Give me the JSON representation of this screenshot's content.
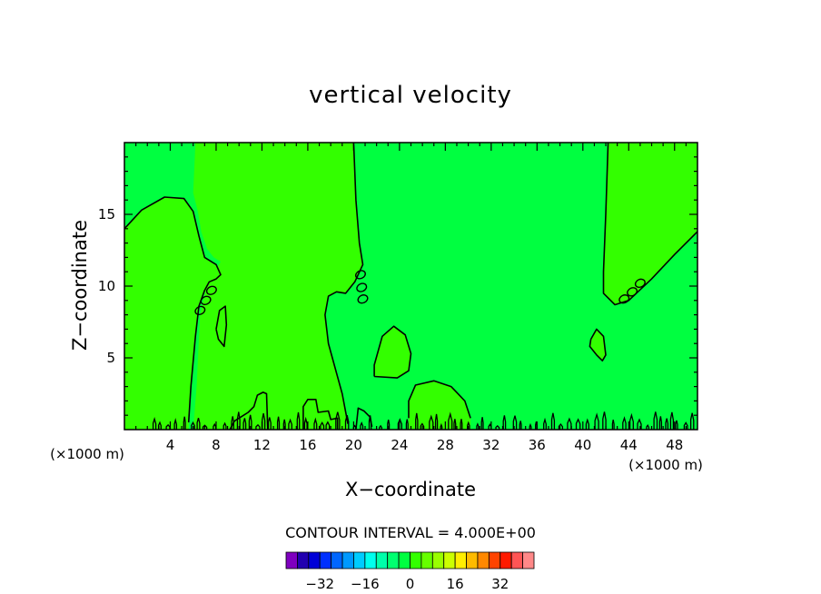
{
  "chart_data": {
    "type": "contour",
    "title": "vertical velocity",
    "xlabel": "X−coordinate",
    "ylabel": "Z−coordinate",
    "x_unit_left": "(×1000 m)",
    "x_unit_right": "(×1000 m)",
    "xlim": [
      0,
      50
    ],
    "ylim": [
      0,
      20
    ],
    "x_ticks": [
      4,
      8,
      12,
      16,
      20,
      24,
      28,
      32,
      36,
      40,
      44,
      48
    ],
    "y_ticks": [
      5,
      10,
      15
    ],
    "contour_interval_text": "CONTOUR INTERVAL = 4.000E+00",
    "background_color": "#00ff40",
    "regions": [
      {
        "color": "#33ff00",
        "polygon": [
          [
            0,
            14
          ],
          [
            1.5,
            15.3
          ],
          [
            3.5,
            16.2
          ],
          [
            5.2,
            16.1
          ],
          [
            6,
            15.2
          ],
          [
            6.5,
            13.5
          ],
          [
            7,
            12
          ],
          [
            8,
            11.5
          ],
          [
            8.4,
            10.8
          ],
          [
            8,
            10.5
          ],
          [
            7.4,
            10.3
          ],
          [
            6.5,
            8.6
          ],
          [
            6.2,
            6.5
          ],
          [
            5.8,
            3
          ],
          [
            5.6,
            0
          ],
          [
            0,
            0
          ]
        ]
      },
      {
        "color": "#33ff00",
        "polygon": [
          [
            6,
            0
          ],
          [
            6.3,
            3
          ],
          [
            6.6,
            8
          ],
          [
            7.3,
            10.5
          ],
          [
            8,
            11.2
          ],
          [
            8.4,
            11.7
          ],
          [
            7.8,
            12
          ],
          [
            7.2,
            12.6
          ],
          [
            6.7,
            13.8
          ],
          [
            6.4,
            15.2
          ],
          [
            6,
            16.5
          ],
          [
            6.2,
            20
          ],
          [
            20,
            20
          ],
          [
            20.2,
            16
          ],
          [
            20.5,
            13
          ],
          [
            20.8,
            11.5
          ],
          [
            20.1,
            10.3
          ],
          [
            19.3,
            9.5
          ],
          [
            18.5,
            9.6
          ],
          [
            17.8,
            9.3
          ],
          [
            17.5,
            8
          ],
          [
            17.8,
            6
          ],
          [
            19,
            2.5
          ],
          [
            19.5,
            0
          ]
        ]
      },
      {
        "color": "#33ff00",
        "polygon": [
          [
            42.2,
            20
          ],
          [
            42,
            15
          ],
          [
            41.8,
            11
          ],
          [
            41.8,
            9.5
          ],
          [
            42.8,
            8.7
          ],
          [
            44,
            9
          ],
          [
            46,
            10.5
          ],
          [
            48,
            12.2
          ],
          [
            50,
            13.8
          ],
          [
            50,
            20
          ]
        ]
      },
      {
        "color": "#33ff00",
        "polygon": [
          [
            21.8,
            3.7
          ],
          [
            21.8,
            4.5
          ],
          [
            22.5,
            6.5
          ],
          [
            23.5,
            7.2
          ],
          [
            24.5,
            6.6
          ],
          [
            25,
            5.3
          ],
          [
            24.8,
            4.1
          ],
          [
            23.8,
            3.6
          ]
        ]
      },
      {
        "color": "#33ff00",
        "polygon": [
          [
            24.8,
            0
          ],
          [
            24.8,
            2
          ],
          [
            25.4,
            3.1
          ],
          [
            27,
            3.4
          ],
          [
            28.5,
            3
          ],
          [
            29.7,
            2
          ],
          [
            30.2,
            0.8
          ],
          [
            30.2,
            0
          ]
        ]
      },
      {
        "color": "#33ff00",
        "polygon": [
          [
            8,
            7
          ],
          [
            8.3,
            8.3
          ],
          [
            8.8,
            8.6
          ],
          [
            8.9,
            7.3
          ],
          [
            8.7,
            5.8
          ],
          [
            8.2,
            6.3
          ]
        ]
      },
      {
        "color": "#33ff00",
        "polygon": [
          [
            40.7,
            6.3
          ],
          [
            41.2,
            7
          ],
          [
            41.8,
            6.5
          ],
          [
            42,
            5.2
          ],
          [
            41.7,
            4.8
          ],
          [
            41.2,
            5.2
          ],
          [
            40.6,
            5.8
          ]
        ]
      }
    ],
    "contours": [
      [
        [
          0,
          14
        ],
        [
          1.5,
          15.3
        ],
        [
          3.5,
          16.2
        ],
        [
          5.2,
          16.1
        ],
        [
          6,
          15.2
        ],
        [
          6.5,
          13.5
        ],
        [
          7,
          12
        ],
        [
          8,
          11.5
        ],
        [
          8.4,
          10.8
        ],
        [
          8,
          10.5
        ],
        [
          7.4,
          10.3
        ],
        [
          7,
          9.7
        ],
        [
          6.5,
          8.6
        ],
        [
          6.2,
          6.5
        ],
        [
          5.8,
          3
        ],
        [
          5.6,
          0.5
        ]
      ],
      [
        [
          20,
          20
        ],
        [
          20.2,
          16
        ],
        [
          20.5,
          13
        ],
        [
          20.8,
          11.5
        ],
        [
          20.1,
          10.3
        ],
        [
          19.3,
          9.5
        ],
        [
          18.5,
          9.6
        ],
        [
          17.8,
          9.3
        ],
        [
          17.5,
          8
        ],
        [
          17.8,
          6
        ],
        [
          19,
          2.5
        ],
        [
          19.5,
          0.4
        ]
      ],
      [
        [
          42.2,
          20
        ],
        [
          42,
          15
        ],
        [
          41.8,
          11
        ],
        [
          41.8,
          9.5
        ],
        [
          42.8,
          8.7
        ],
        [
          44,
          9
        ],
        [
          46,
          10.5
        ],
        [
          48,
          12.2
        ],
        [
          50,
          13.8
        ]
      ],
      [
        [
          21.8,
          3.7
        ],
        [
          21.8,
          4.5
        ],
        [
          22.5,
          6.5
        ],
        [
          23.5,
          7.2
        ],
        [
          24.5,
          6.6
        ],
        [
          25,
          5.3
        ],
        [
          24.8,
          4.1
        ],
        [
          23.8,
          3.6
        ],
        [
          21.8,
          3.7
        ]
      ],
      [
        [
          24.8,
          0.8
        ],
        [
          24.8,
          2
        ],
        [
          25.4,
          3.1
        ],
        [
          27,
          3.4
        ],
        [
          28.5,
          3
        ],
        [
          29.7,
          2
        ],
        [
          30.2,
          0.8
        ]
      ],
      [
        [
          8,
          7
        ],
        [
          8.3,
          8.3
        ],
        [
          8.8,
          8.6
        ],
        [
          8.9,
          7.3
        ],
        [
          8.7,
          5.8
        ],
        [
          8.2,
          6.3
        ],
        [
          8,
          7
        ]
      ],
      [
        [
          40.7,
          6.3
        ],
        [
          41.2,
          7
        ],
        [
          41.8,
          6.5
        ],
        [
          42,
          5.2
        ],
        [
          41.7,
          4.8
        ],
        [
          41.2,
          5.2
        ],
        [
          40.6,
          5.8
        ],
        [
          40.7,
          6.3
        ]
      ],
      [
        [
          9.2,
          0
        ],
        [
          9.6,
          0.6
        ],
        [
          10.2,
          0.9
        ],
        [
          10.8,
          1.2
        ],
        [
          11.3,
          1.6
        ],
        [
          11.6,
          2.4
        ],
        [
          12.1,
          2.6
        ],
        [
          12.4,
          2.5
        ],
        [
          12.5,
          0
        ]
      ],
      [
        [
          15.6,
          0
        ],
        [
          15.6,
          1.6
        ],
        [
          16,
          2.1
        ],
        [
          16.7,
          2.1
        ],
        [
          16.9,
          1.2
        ],
        [
          17.8,
          1.3
        ],
        [
          18,
          0.7
        ],
        [
          18.6,
          0.8
        ],
        [
          18.6,
          0
        ]
      ],
      [
        [
          20.2,
          0
        ],
        [
          20.4,
          1.5
        ],
        [
          20.9,
          1.3
        ],
        [
          21.4,
          0.9
        ],
        [
          21.6,
          0.2
        ]
      ]
    ],
    "small_loops": [
      [
        6.6,
        8.3
      ],
      [
        7.1,
        9.0
      ],
      [
        7.6,
        9.7
      ],
      [
        20.6,
        10.8
      ],
      [
        20.7,
        9.9
      ],
      [
        20.8,
        9.1
      ],
      [
        43.6,
        9.1
      ],
      [
        44.3,
        9.6
      ],
      [
        45,
        10.2
      ]
    ],
    "noise_range_x": [
      2.5,
      50
    ],
    "colorbar": {
      "colors": [
        "#7f00bf",
        "#2200b0",
        "#0000d8",
        "#0030ff",
        "#0066ff",
        "#0099ff",
        "#00ccff",
        "#00ffee",
        "#00ffaa",
        "#00ff70",
        "#00ff40",
        "#33ff00",
        "#66ff00",
        "#99ff00",
        "#ccff00",
        "#ffee00",
        "#ffbb00",
        "#ff8800",
        "#ff4400",
        "#ff1a00",
        "#ff5555",
        "#ff8888"
      ],
      "tick_labels": [
        "−32",
        "−16",
        "0",
        "16",
        "32"
      ],
      "tick_values": [
        -32,
        -16,
        0,
        16,
        32
      ],
      "min": -44,
      "max": 44
    }
  }
}
